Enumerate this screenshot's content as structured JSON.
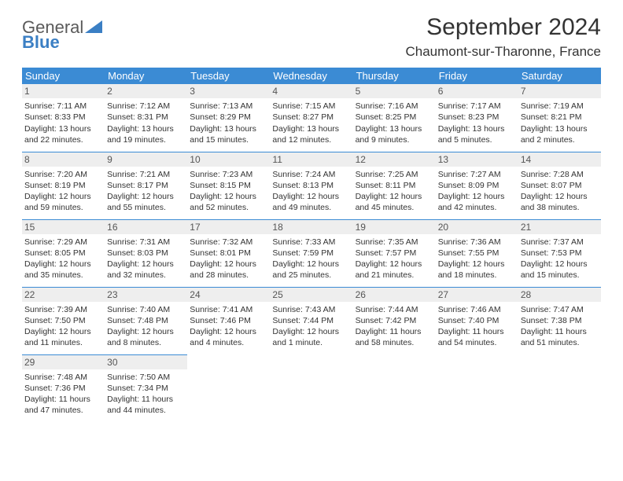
{
  "logo": {
    "text1": "General",
    "text2": "Blue"
  },
  "title": "September 2024",
  "location": "Chaumont-sur-Tharonne, France",
  "colors": {
    "header_bg": "#3b8bd4",
    "header_fg": "#ffffff",
    "daynum_bg": "#eeeeee",
    "rule": "#3b8bd4",
    "logo_gray": "#5a5a5a",
    "logo_blue": "#3b7fc4"
  },
  "weekdays": [
    "Sunday",
    "Monday",
    "Tuesday",
    "Wednesday",
    "Thursday",
    "Friday",
    "Saturday"
  ],
  "days": [
    {
      "n": 1,
      "sr": "7:11 AM",
      "ss": "8:33 PM",
      "dl": "13 hours and 22 minutes."
    },
    {
      "n": 2,
      "sr": "7:12 AM",
      "ss": "8:31 PM",
      "dl": "13 hours and 19 minutes."
    },
    {
      "n": 3,
      "sr": "7:13 AM",
      "ss": "8:29 PM",
      "dl": "13 hours and 15 minutes."
    },
    {
      "n": 4,
      "sr": "7:15 AM",
      "ss": "8:27 PM",
      "dl": "13 hours and 12 minutes."
    },
    {
      "n": 5,
      "sr": "7:16 AM",
      "ss": "8:25 PM",
      "dl": "13 hours and 9 minutes."
    },
    {
      "n": 6,
      "sr": "7:17 AM",
      "ss": "8:23 PM",
      "dl": "13 hours and 5 minutes."
    },
    {
      "n": 7,
      "sr": "7:19 AM",
      "ss": "8:21 PM",
      "dl": "13 hours and 2 minutes."
    },
    {
      "n": 8,
      "sr": "7:20 AM",
      "ss": "8:19 PM",
      "dl": "12 hours and 59 minutes."
    },
    {
      "n": 9,
      "sr": "7:21 AM",
      "ss": "8:17 PM",
      "dl": "12 hours and 55 minutes."
    },
    {
      "n": 10,
      "sr": "7:23 AM",
      "ss": "8:15 PM",
      "dl": "12 hours and 52 minutes."
    },
    {
      "n": 11,
      "sr": "7:24 AM",
      "ss": "8:13 PM",
      "dl": "12 hours and 49 minutes."
    },
    {
      "n": 12,
      "sr": "7:25 AM",
      "ss": "8:11 PM",
      "dl": "12 hours and 45 minutes."
    },
    {
      "n": 13,
      "sr": "7:27 AM",
      "ss": "8:09 PM",
      "dl": "12 hours and 42 minutes."
    },
    {
      "n": 14,
      "sr": "7:28 AM",
      "ss": "8:07 PM",
      "dl": "12 hours and 38 minutes."
    },
    {
      "n": 15,
      "sr": "7:29 AM",
      "ss": "8:05 PM",
      "dl": "12 hours and 35 minutes."
    },
    {
      "n": 16,
      "sr": "7:31 AM",
      "ss": "8:03 PM",
      "dl": "12 hours and 32 minutes."
    },
    {
      "n": 17,
      "sr": "7:32 AM",
      "ss": "8:01 PM",
      "dl": "12 hours and 28 minutes."
    },
    {
      "n": 18,
      "sr": "7:33 AM",
      "ss": "7:59 PM",
      "dl": "12 hours and 25 minutes."
    },
    {
      "n": 19,
      "sr": "7:35 AM",
      "ss": "7:57 PM",
      "dl": "12 hours and 21 minutes."
    },
    {
      "n": 20,
      "sr": "7:36 AM",
      "ss": "7:55 PM",
      "dl": "12 hours and 18 minutes."
    },
    {
      "n": 21,
      "sr": "7:37 AM",
      "ss": "7:53 PM",
      "dl": "12 hours and 15 minutes."
    },
    {
      "n": 22,
      "sr": "7:39 AM",
      "ss": "7:50 PM",
      "dl": "12 hours and 11 minutes."
    },
    {
      "n": 23,
      "sr": "7:40 AM",
      "ss": "7:48 PM",
      "dl": "12 hours and 8 minutes."
    },
    {
      "n": 24,
      "sr": "7:41 AM",
      "ss": "7:46 PM",
      "dl": "12 hours and 4 minutes."
    },
    {
      "n": 25,
      "sr": "7:43 AM",
      "ss": "7:44 PM",
      "dl": "12 hours and 1 minute."
    },
    {
      "n": 26,
      "sr": "7:44 AM",
      "ss": "7:42 PM",
      "dl": "11 hours and 58 minutes."
    },
    {
      "n": 27,
      "sr": "7:46 AM",
      "ss": "7:40 PM",
      "dl": "11 hours and 54 minutes."
    },
    {
      "n": 28,
      "sr": "7:47 AM",
      "ss": "7:38 PM",
      "dl": "11 hours and 51 minutes."
    },
    {
      "n": 29,
      "sr": "7:48 AM",
      "ss": "7:36 PM",
      "dl": "11 hours and 47 minutes."
    },
    {
      "n": 30,
      "sr": "7:50 AM",
      "ss": "7:34 PM",
      "dl": "11 hours and 44 minutes."
    }
  ],
  "labels": {
    "sunrise": "Sunrise:",
    "sunset": "Sunset:",
    "daylight": "Daylight:"
  },
  "layout": {
    "start_weekday": 0,
    "cols": 7
  }
}
